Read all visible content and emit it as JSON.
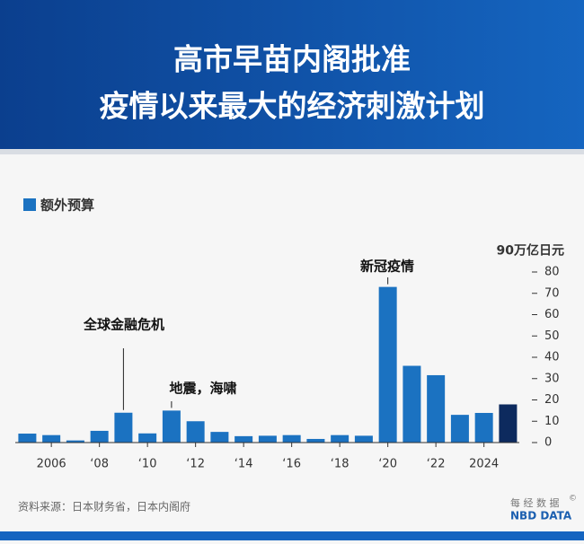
{
  "chart_data": {
    "type": "bar",
    "title": [
      "高市早苗内阁批准",
      "疫情以来最大的经济刺激计划"
    ],
    "legend": "额外预算",
    "categories": [
      null,
      "2006",
      null,
      "‘08",
      null,
      "‘10",
      null,
      "‘12",
      null,
      "‘14",
      null,
      "‘16",
      null,
      "‘18",
      null,
      "‘20",
      null,
      "‘22",
      null,
      "2024",
      null
    ],
    "values": [
      4.2,
      3.5,
      1,
      5.5,
      14,
      4.3,
      15,
      10,
      5,
      3,
      3.2,
      3.5,
      1.7,
      3.5,
      3.2,
      73,
      36,
      31.6,
      13,
      13.9,
      17.9
    ],
    "colors": [
      "#1b72c1",
      "#1b72c1",
      "#1b72c1",
      "#1b72c1",
      "#1b72c1",
      "#1b72c1",
      "#1b72c1",
      "#1b72c1",
      "#1b72c1",
      "#1b72c1",
      "#1b72c1",
      "#1b72c1",
      "#1b72c1",
      "#1b72c1",
      "#1b72c1",
      "#1b72c1",
      "#1b72c1",
      "#1b72c1",
      "#1b72c1",
      "#1b72c1",
      "#0d2a5e"
    ],
    "ylim": [
      0,
      90
    ],
    "yticks": [
      0,
      10,
      20,
      30,
      40,
      50,
      60,
      70,
      80,
      {
        "value": 90,
        "label": "90万亿日元"
      }
    ],
    "annotations": [
      "全球金融危机",
      "地震，海啸",
      "新冠疫情"
    ],
    "source": "资料来源：日本财务省，日本内阁府",
    "logo": {
      "cn": "每 经 数 据",
      "en": "NBD DATA",
      "mark": "©"
    }
  }
}
